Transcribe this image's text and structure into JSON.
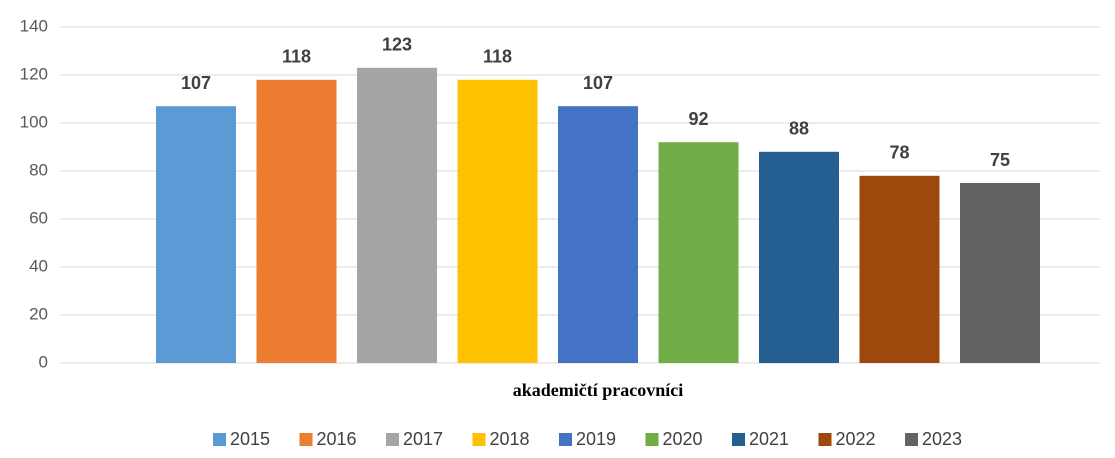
{
  "chart_data": {
    "type": "bar",
    "categories": [
      "akademičtí pracovníci"
    ],
    "series": [
      {
        "name": "2015",
        "color": "#5b9bd5",
        "values": [
          107
        ]
      },
      {
        "name": "2016",
        "color": "#ed7d31",
        "values": [
          118
        ]
      },
      {
        "name": "2017",
        "color": "#a5a5a5",
        "values": [
          123
        ]
      },
      {
        "name": "2018",
        "color": "#ffc000",
        "values": [
          118
        ]
      },
      {
        "name": "2019",
        "color": "#4472c4",
        "values": [
          107
        ]
      },
      {
        "name": "2020",
        "color": "#70ad47",
        "values": [
          92
        ]
      },
      {
        "name": "2021",
        "color": "#255e91",
        "values": [
          88
        ]
      },
      {
        "name": "2022",
        "color": "#9e480e",
        "values": [
          78
        ]
      },
      {
        "name": "2023",
        "color": "#636363",
        "values": [
          75
        ]
      }
    ],
    "ylim": [
      0,
      140
    ],
    "yticks": [
      0,
      20,
      40,
      60,
      80,
      100,
      120,
      140
    ],
    "grid": true,
    "legend": "bottom"
  }
}
